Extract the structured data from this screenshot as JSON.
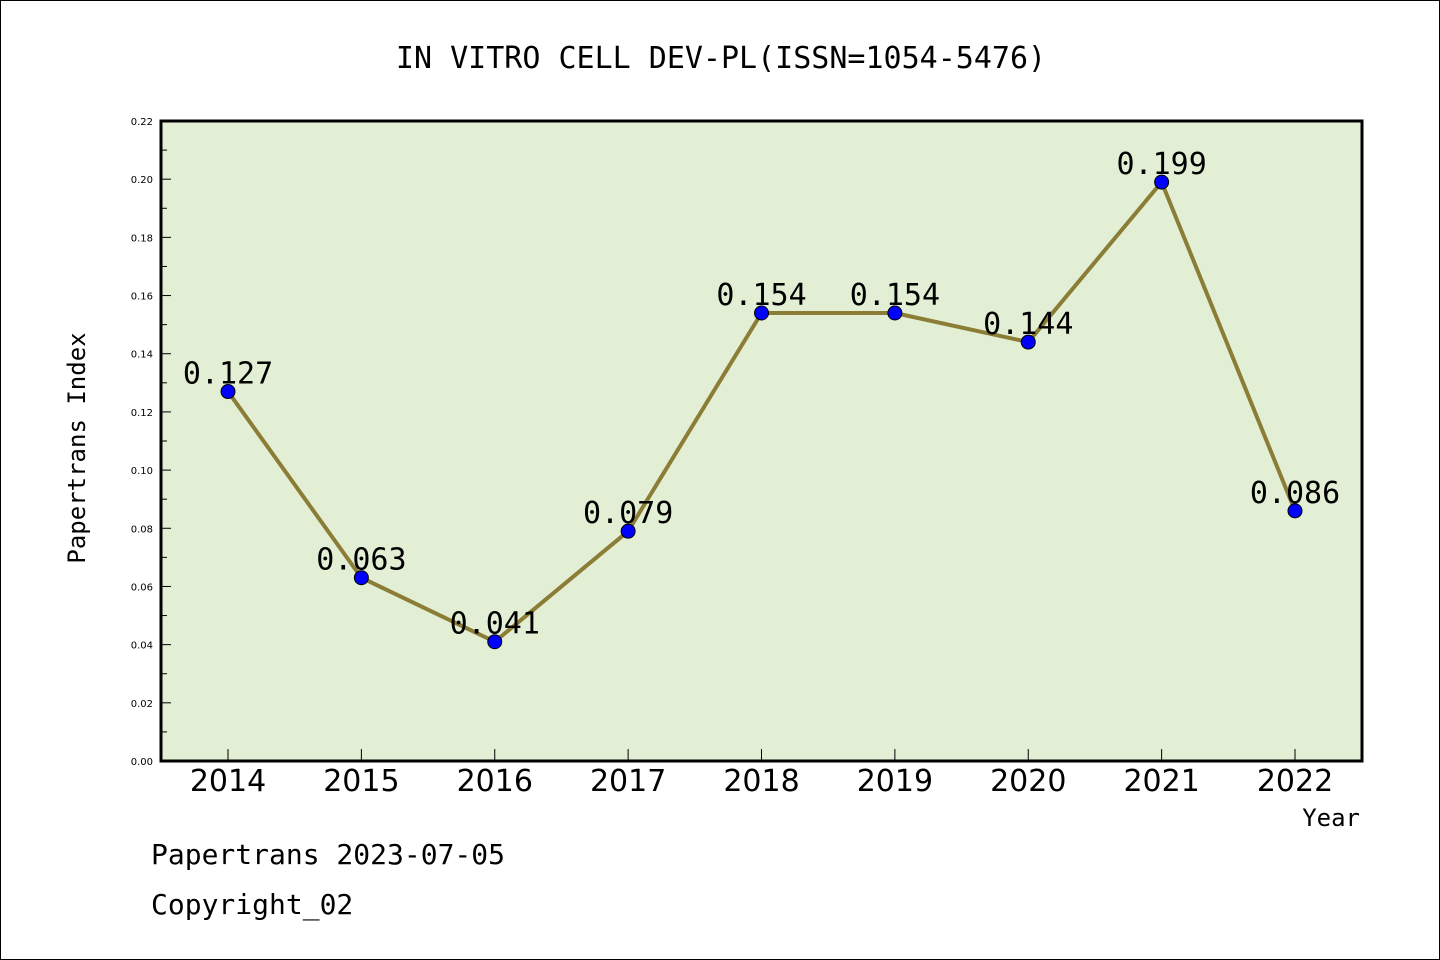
{
  "chart_data": {
    "type": "line",
    "title": "IN VITRO CELL DEV-PL(ISSN=1054-5476)",
    "xlabel": "Year",
    "ylabel": "Papertrans Index",
    "categories": [
      "2014",
      "2015",
      "2016",
      "2017",
      "2018",
      "2019",
      "2020",
      "2021",
      "2022"
    ],
    "values": [
      0.127,
      0.063,
      0.041,
      0.079,
      0.154,
      0.154,
      0.144,
      0.199,
      0.086
    ],
    "data_labels": [
      "0.127",
      "0.063",
      "0.041",
      "0.079",
      "0.154",
      "0.154",
      "0.144",
      "0.199",
      "0.086"
    ],
    "ylim": [
      0,
      0.22
    ],
    "yticks": [
      "0.00",
      "0.02",
      "0.04",
      "0.06",
      "0.08",
      "0.10",
      "0.12",
      "0.14",
      "0.16",
      "0.18",
      "0.20",
      "0.22"
    ],
    "grid": false,
    "legend": "none",
    "colors": {
      "plot_background": "#e2efd5",
      "line": "#8b7d35",
      "marker": "#0000ff"
    }
  },
  "footer": {
    "line1": "Papertrans 2023-07-05",
    "line2": "Copyright_02"
  }
}
